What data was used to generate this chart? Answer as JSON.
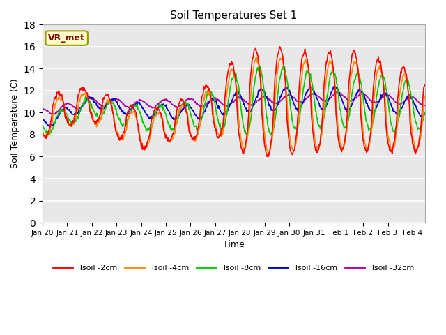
{
  "title": "Soil Temperatures Set 1",
  "xlabel": "Time",
  "ylabel": "Soil Temperature (C)",
  "ylim": [
    0,
    18
  ],
  "yticks": [
    0,
    2,
    4,
    6,
    8,
    10,
    12,
    14,
    16,
    18
  ],
  "plot_bg_color": "#e8e8e8",
  "grid_color": "#ffffff",
  "line_colors": {
    "2cm": "#ff0000",
    "4cm": "#ff8800",
    "8cm": "#00cc00",
    "16cm": "#0000cc",
    "32cm": "#aa00aa"
  },
  "legend_labels": [
    "Tsoil -2cm",
    "Tsoil -4cm",
    "Tsoil -8cm",
    "Tsoil -16cm",
    "Tsoil -32cm"
  ],
  "annotation_text": "VR_met",
  "annotation_bg": "#ffffcc",
  "annotation_border": "#999900",
  "start_day": 20
}
